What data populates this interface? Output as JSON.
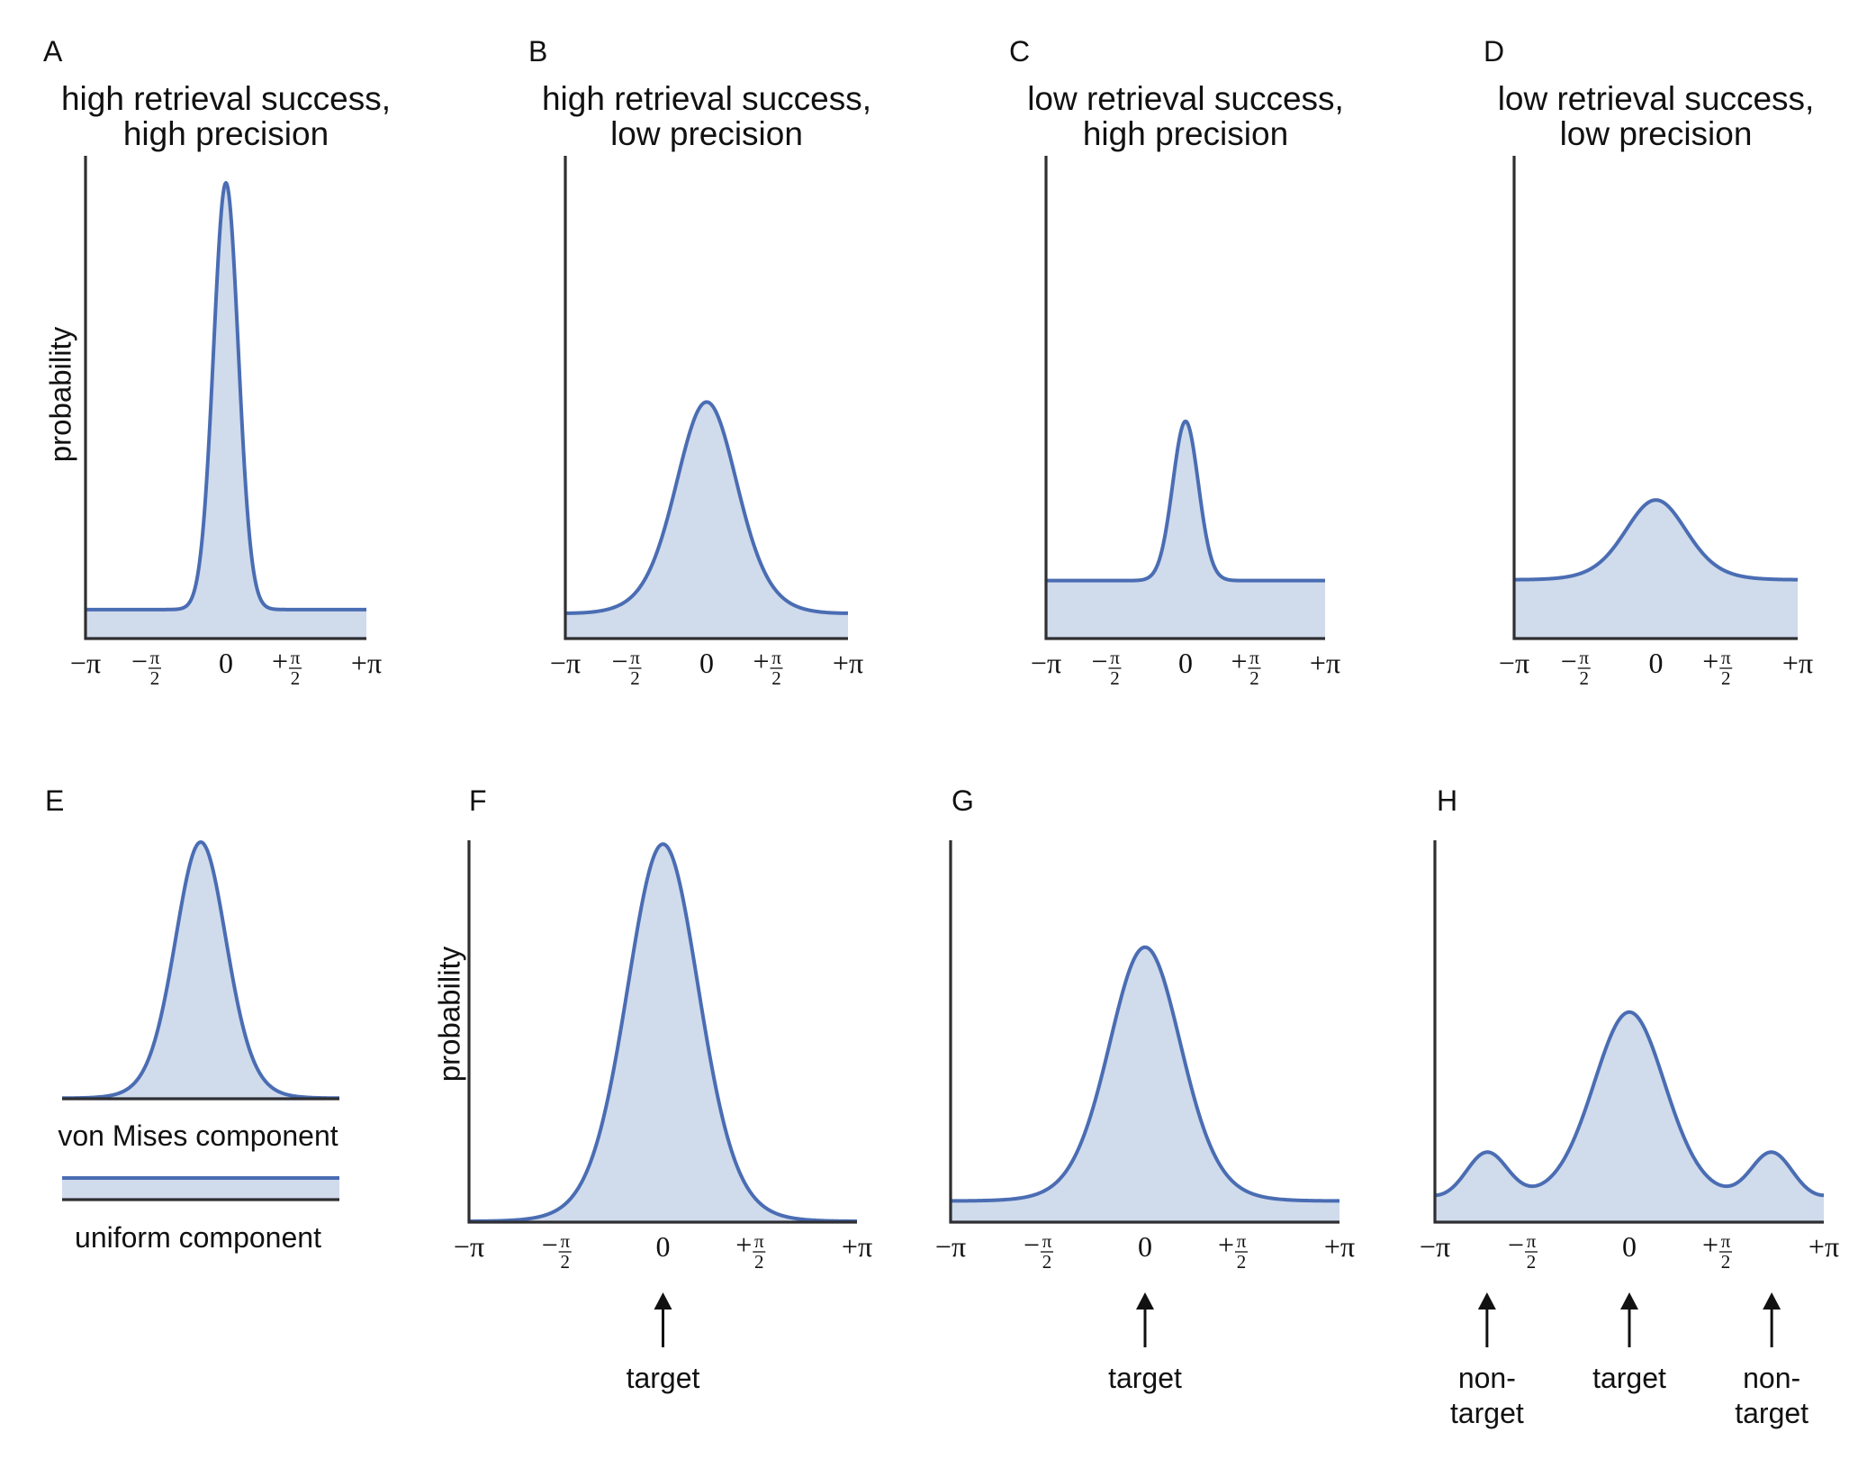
{
  "chart_data": [
    {
      "id": "A",
      "type": "area",
      "letter": "A",
      "title": [
        "high retrieval success,",
        "high precision"
      ],
      "ylabel": "probability",
      "xlabel": "",
      "xlim": [
        "-π",
        "+π"
      ],
      "xticks": [
        {
          "sign": "−",
          "main": "π",
          "frac": false
        },
        {
          "sign": "−",
          "num": "π",
          "den": "2",
          "frac": true
        },
        {
          "sign": "",
          "main": "0",
          "frac": false
        },
        {
          "sign": "+",
          "num": "π",
          "den": "2",
          "frac": true
        },
        {
          "sign": "+",
          "main": "π",
          "frac": false
        }
      ],
      "ylim_relative": [
        0,
        1
      ],
      "uniform_level": 0.06,
      "components": [
        {
          "mu": 0,
          "kappa": 13,
          "peak": 0.944
        }
      ],
      "annotations": []
    },
    {
      "id": "B",
      "type": "area",
      "letter": "B",
      "title": [
        "high retrieval success,",
        "low precision"
      ],
      "ylabel": "",
      "xlim": [
        "-π",
        "+π"
      ],
      "uniform_level": 0.047,
      "components": [
        {
          "mu": 0,
          "kappa": 2.2,
          "peak": 0.49
        }
      ],
      "annotations": []
    },
    {
      "id": "C",
      "type": "area",
      "letter": "C",
      "title": [
        "low retrieval success,",
        "high precision"
      ],
      "ylabel": "",
      "xlim": [
        "-π",
        "+π"
      ],
      "uniform_level": 0.12,
      "components": [
        {
          "mu": 0,
          "kappa": 12,
          "peak": 0.45
        }
      ],
      "annotations": []
    },
    {
      "id": "D",
      "type": "area",
      "letter": "D",
      "title": [
        "low retrieval success,",
        "low precision"
      ],
      "ylabel": "",
      "xlim": [
        "-π",
        "+π"
      ],
      "uniform_level": 0.12,
      "components": [
        {
          "mu": 0,
          "kappa": 2.2,
          "peak": 0.287
        }
      ],
      "annotations": []
    },
    {
      "id": "E",
      "type": "legend",
      "letter": "E",
      "von_mises_label": "von Mises component",
      "uniform_label": "uniform component",
      "components": [
        {
          "mu": 0,
          "kappa": 3,
          "peak": 1.0
        }
      ]
    },
    {
      "id": "F",
      "type": "area",
      "letter": "F",
      "title": [],
      "ylabel": "probability",
      "xlim": [
        "-π",
        "+π"
      ],
      "uniform_level": 0.0,
      "components": [
        {
          "mu": 0,
          "kappa": 3,
          "peak": 0.99
        }
      ],
      "annotations": [
        {
          "x": 0,
          "lines": [
            "target"
          ]
        }
      ]
    },
    {
      "id": "G",
      "type": "area",
      "letter": "G",
      "title": [],
      "ylabel": "",
      "xlim": [
        "-π",
        "+π"
      ],
      "uniform_level": 0.054,
      "components": [
        {
          "mu": 0,
          "kappa": 3,
          "peak": 0.72
        }
      ],
      "annotations": [
        {
          "x": 0,
          "lines": [
            "target"
          ]
        }
      ]
    },
    {
      "id": "H",
      "type": "area",
      "letter": "H",
      "title": [],
      "ylabel": "",
      "xlim": [
        "-π",
        "+π"
      ],
      "uniform_level": 0.057,
      "components": [
        {
          "mu": 0,
          "kappa": 3,
          "peak": 0.55
        },
        {
          "mu": -2.3,
          "kappa": 9,
          "peak": 0.18
        },
        {
          "mu": 2.3,
          "kappa": 9,
          "peak": 0.18
        }
      ],
      "annotations": [
        {
          "x": -2.3,
          "lines": [
            "non-",
            "target"
          ]
        },
        {
          "x": 0,
          "lines": [
            "target"
          ]
        },
        {
          "x": 2.3,
          "lines": [
            "non-",
            "target"
          ]
        }
      ]
    }
  ],
  "colors": {
    "curve": "#4a6db3",
    "fill": "#d0dbec",
    "axis": "#2f2f33",
    "text": "#111111"
  }
}
